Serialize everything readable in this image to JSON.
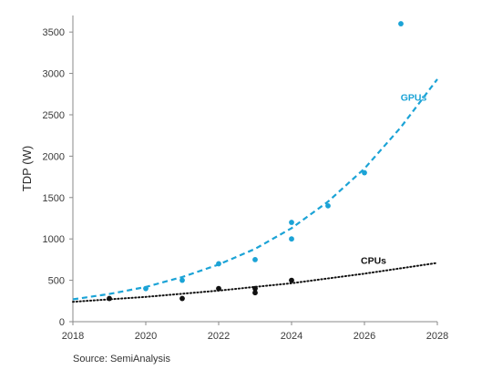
{
  "chart_data": {
    "type": "scatter",
    "title": "",
    "xlabel": "",
    "ylabel": "TDP (W)",
    "xlim": [
      2018,
      2028
    ],
    "ylim": [
      0,
      3700
    ],
    "x_ticks": [
      2018,
      2020,
      2022,
      2024,
      2026,
      2028
    ],
    "y_ticks": [
      0,
      500,
      1000,
      1500,
      2000,
      2500,
      3000,
      3500
    ],
    "grid": false,
    "source": "Source: SemiAnalysis",
    "series": [
      {
        "name": "GPUs",
        "color": "#1ba3d6",
        "points": [
          {
            "x": 2020,
            "y": 400
          },
          {
            "x": 2021,
            "y": 500
          },
          {
            "x": 2022,
            "y": 700
          },
          {
            "x": 2023,
            "y": 750
          },
          {
            "x": 2024,
            "y": 1000
          },
          {
            "x": 2024,
            "y": 1200
          },
          {
            "x": 2025,
            "y": 1400
          },
          {
            "x": 2026,
            "y": 1800
          },
          {
            "x": 2027,
            "y": 3600
          }
        ],
        "trend": {
          "style": "dashed",
          "points": [
            {
              "x": 2018,
              "y": 270
            },
            {
              "x": 2019,
              "y": 335
            },
            {
              "x": 2020,
              "y": 420
            },
            {
              "x": 2021,
              "y": 540
            },
            {
              "x": 2022,
              "y": 690
            },
            {
              "x": 2023,
              "y": 880
            },
            {
              "x": 2024,
              "y": 1130
            },
            {
              "x": 2025,
              "y": 1450
            },
            {
              "x": 2026,
              "y": 1850
            },
            {
              "x": 2027,
              "y": 2350
            },
            {
              "x": 2028,
              "y": 2930
            }
          ]
        }
      },
      {
        "name": "CPUs",
        "color": "#111111",
        "points": [
          {
            "x": 2019,
            "y": 280
          },
          {
            "x": 2021,
            "y": 280
          },
          {
            "x": 2022,
            "y": 400
          },
          {
            "x": 2023,
            "y": 350
          },
          {
            "x": 2023,
            "y": 400
          },
          {
            "x": 2024,
            "y": 500
          }
        ],
        "trend": {
          "style": "dotted",
          "points": [
            {
              "x": 2018,
              "y": 240
            },
            {
              "x": 2020,
              "y": 300
            },
            {
              "x": 2022,
              "y": 375
            },
            {
              "x": 2024,
              "y": 465
            },
            {
              "x": 2026,
              "y": 580
            },
            {
              "x": 2028,
              "y": 710
            }
          ]
        }
      }
    ]
  }
}
